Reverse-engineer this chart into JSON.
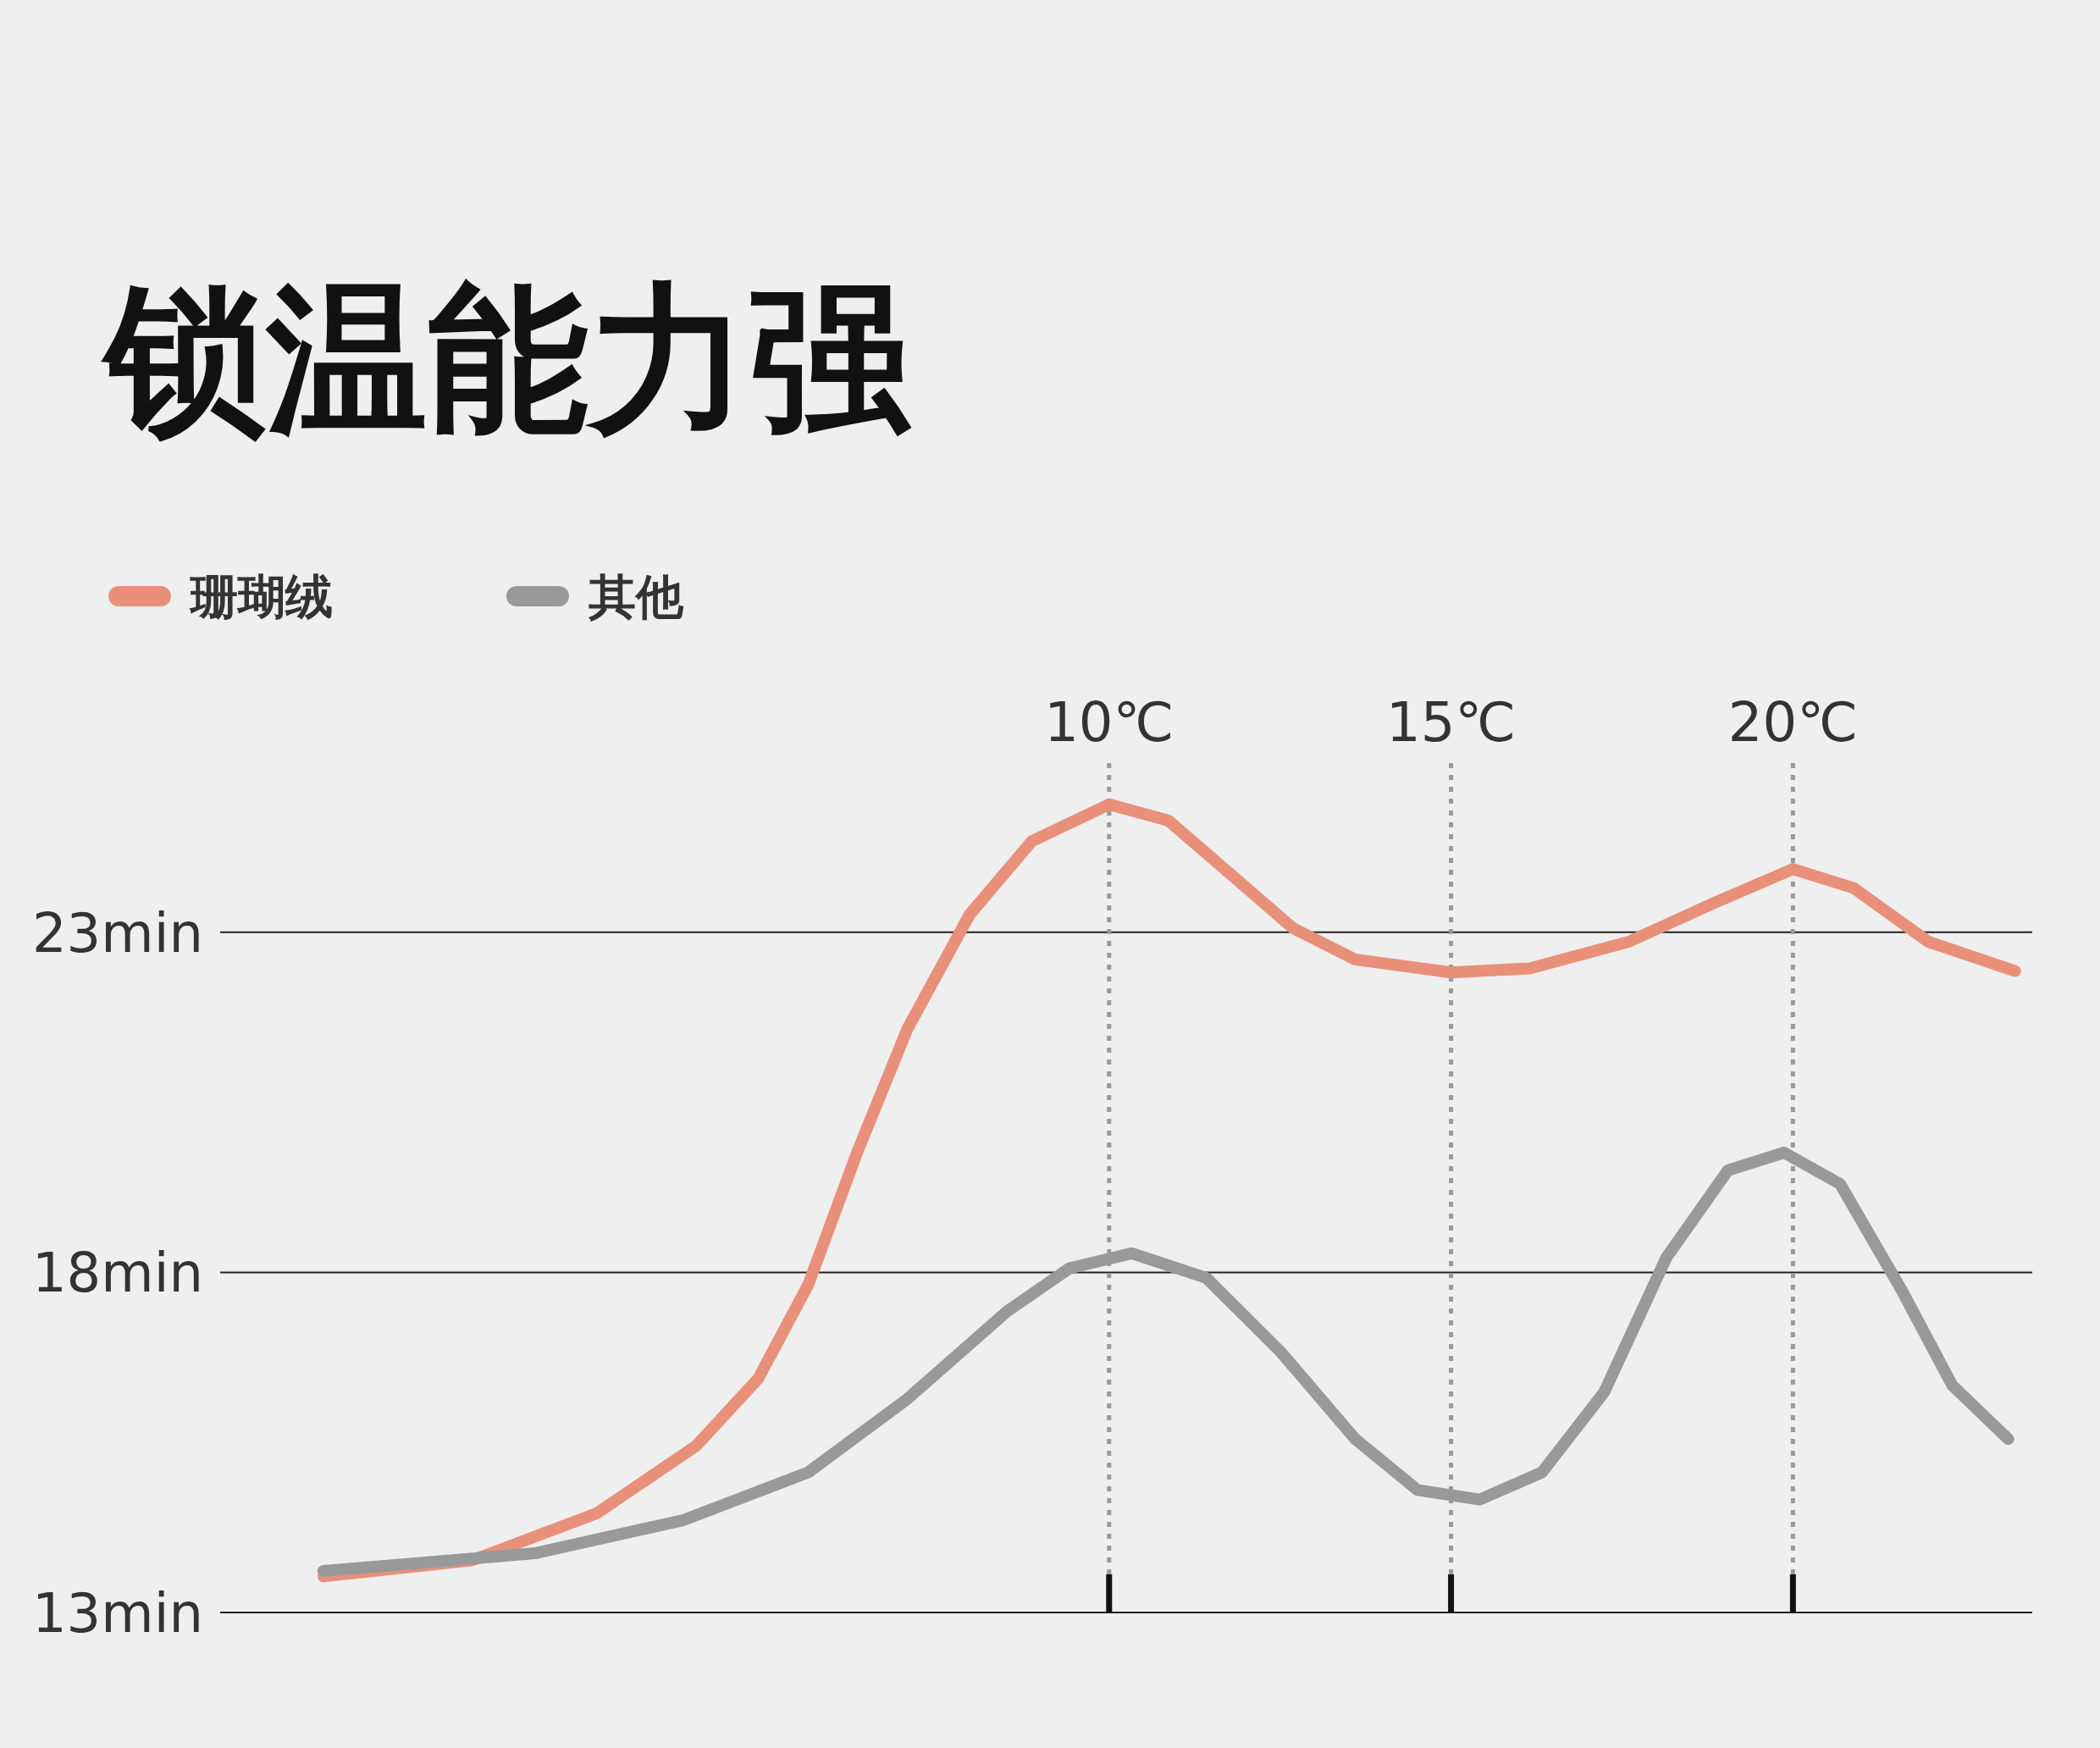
{
  "chart_data": {
    "type": "line",
    "title": "锁温能力强",
    "series": [
      {
        "name": "珊瑚绒",
        "color": "#e8907a",
        "x": [
          -1.49,
          0.69,
          2.51,
          3.96,
          4.87,
          5.6,
          6.33,
          7.05,
          7.96,
          8.87,
          10,
          10.87,
          11.78,
          12.69,
          13.6,
          15,
          16.15,
          17.6,
          18.89,
          20,
          20.89,
          21.98,
          23.25
        ],
        "values": [
          13.53,
          13.77,
          14.46,
          15.45,
          16.44,
          17.82,
          19.8,
          21.58,
          23.26,
          24.34,
          24.88,
          24.64,
          23.85,
          23.06,
          22.6,
          22.41,
          22.47,
          22.86,
          23.45,
          23.93,
          23.65,
          22.86,
          22.43
        ]
      },
      {
        "name": "其他",
        "color": "#999999",
        "x": [
          -1.49,
          1.6,
          3.78,
          5.6,
          7.05,
          8.51,
          9.42,
          10.33,
          11.42,
          12.51,
          13.6,
          14.51,
          15.42,
          16.33,
          17.24,
          18.15,
          19.05,
          19.87,
          20.69,
          21.6,
          22.33,
          23.15
        ],
        "values": [
          13.61,
          13.87,
          14.36,
          15.06,
          16.14,
          17.43,
          18.06,
          18.28,
          17.92,
          16.83,
          15.55,
          14.8,
          14.66,
          15.06,
          16.24,
          18.22,
          19.5,
          19.76,
          19.3,
          17.72,
          16.34,
          15.55
        ]
      }
    ],
    "xticks": [
      {
        "value": 10,
        "label": "10℃"
      },
      {
        "value": 15,
        "label": "15℃"
      },
      {
        "value": 20,
        "label": "20℃"
      }
    ],
    "yticks": [
      {
        "value": 13,
        "label": "13min"
      },
      {
        "value": 18,
        "label": "18min"
      },
      {
        "value": 23,
        "label": "23min"
      }
    ],
    "xlim": [
      -3,
      23.5
    ],
    "ylim": [
      13,
      25.5
    ],
    "grid": true,
    "legend": "top left",
    "line_style": "solid",
    "marker": "none"
  }
}
